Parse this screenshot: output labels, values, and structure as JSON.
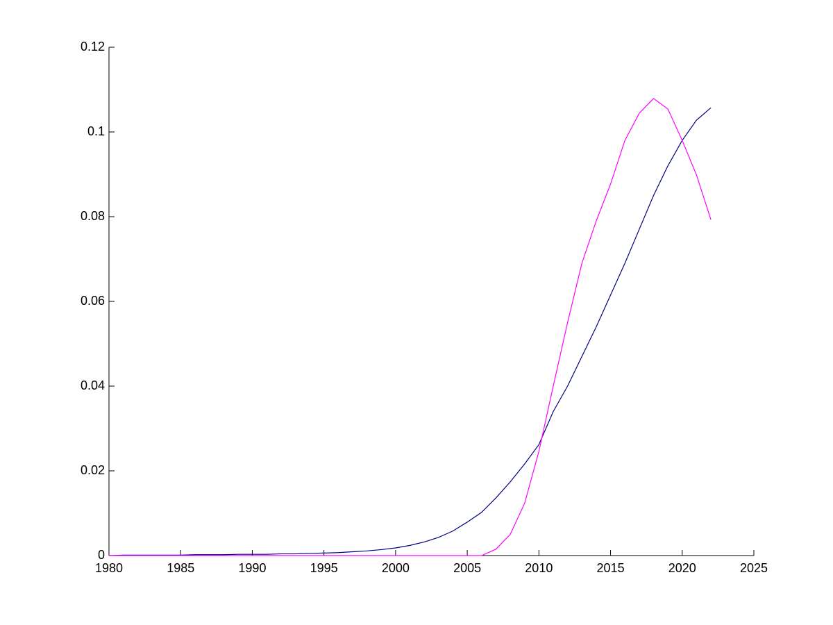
{
  "chart_data": {
    "type": "line",
    "x": [
      1980,
      1981,
      1982,
      1983,
      1984,
      1985,
      1986,
      1987,
      1988,
      1989,
      1990,
      1991,
      1992,
      1993,
      1994,
      1995,
      1996,
      1997,
      1998,
      1999,
      2000,
      2001,
      2002,
      2003,
      2004,
      2005,
      2006,
      2007,
      2008,
      2009,
      2010,
      2011,
      2012,
      2013,
      2014,
      2015,
      2016,
      2017,
      2018,
      2019,
      2020,
      2021,
      2022
    ],
    "series": [
      {
        "color": "#00007f",
        "values": [
          0,
          0.0001,
          0.0001,
          0.0001,
          0.0001,
          0.0001,
          0.0002,
          0.0002,
          0.0002,
          0.0003,
          0.0003,
          0.0003,
          0.0004,
          0.0004,
          0.0005,
          0.0006,
          0.0007,
          0.0009,
          0.0011,
          0.0014,
          0.0018,
          0.0024,
          0.0032,
          0.0043,
          0.0058,
          0.0079,
          0.0102,
          0.0136,
          0.0174,
          0.0216,
          0.0262,
          0.034,
          0.04,
          0.047,
          0.054,
          0.0615,
          0.069,
          0.077,
          0.085,
          0.092,
          0.098,
          0.1028,
          0.1057
        ]
      },
      {
        "color": "#ff00ff",
        "values": [
          0,
          0,
          0,
          0,
          0,
          0,
          0,
          0,
          0,
          0,
          0,
          0,
          0,
          0,
          0,
          0,
          0,
          0,
          0,
          0,
          0,
          0,
          0,
          0,
          0,
          0,
          0,
          0.0015,
          0.005,
          0.0123,
          0.0246,
          0.04,
          0.055,
          0.069,
          0.079,
          0.0877,
          0.098,
          0.1044,
          0.1079,
          0.1054,
          0.098,
          0.0898,
          0.0793
        ]
      }
    ],
    "xlim": [
      1980,
      2025
    ],
    "xticks": [
      1980,
      1985,
      1990,
      1995,
      2000,
      2005,
      2010,
      2015,
      2020,
      2025
    ],
    "ylim": [
      0,
      0.12
    ],
    "yticks": [
      0,
      0.02,
      0.04,
      0.06,
      0.08,
      0.1,
      0.12
    ]
  }
}
